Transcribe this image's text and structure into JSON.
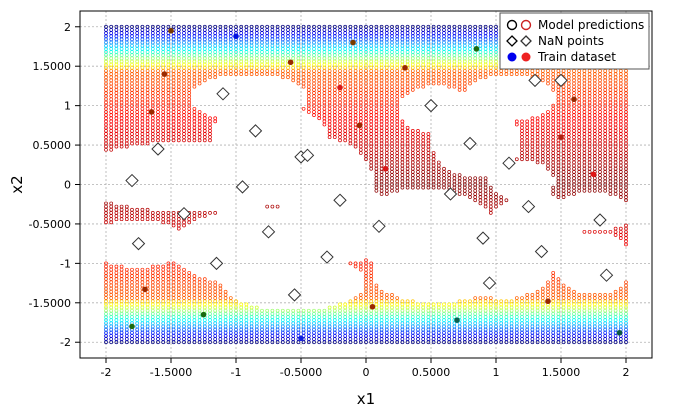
{
  "chart_data": {
    "type": "scatter",
    "xlabel": "x1",
    "ylabel": "x2",
    "xlim": [
      -2.2,
      2.2
    ],
    "ylim": [
      -2.2,
      2.2
    ],
    "grid": true,
    "legend_position": "top-right",
    "x_ticks": [
      -2,
      -1.5,
      -1,
      -0.5,
      0,
      0.5,
      1,
      1.5,
      2
    ],
    "y_ticks": [
      -2,
      -1.5,
      -1,
      -0.5,
      0,
      0.5,
      1,
      1.5,
      2
    ],
    "x_tick_labels": [
      "-2",
      "-1.5000",
      "-1",
      "-0.5000",
      "0",
      "0.5000",
      "1",
      "1.5000",
      "2"
    ],
    "y_tick_labels": [
      "-2",
      "-1.5000",
      "-1",
      "-0.5000",
      "0",
      "0.5000",
      "1",
      "1.5000",
      "2"
    ],
    "legend": [
      {
        "name": "Model predictions",
        "marker": "circle-open",
        "colors": [
          "#000000",
          "#cc2222"
        ]
      },
      {
        "name": "NaN points",
        "marker": "diamond-open",
        "colors": [
          "#000000",
          "#333333"
        ]
      },
      {
        "name": "Train dataset",
        "marker": "circle-filled",
        "colors": [
          "#0000ee",
          "#ee2222"
        ]
      }
    ],
    "model_prediction_grid": {
      "x_range": [
        -2,
        2
      ],
      "y_range": [
        -2,
        2
      ],
      "x_step": 0.04,
      "y_step": 0.04,
      "colormap": "jet",
      "nan_regions": [
        {
          "cx": -1.3,
          "cy": 0.1,
          "rx": 0.95,
          "ry": 0.45
        },
        {
          "cx": -1.75,
          "cy": -0.75,
          "rx": 0.4,
          "ry": 0.3
        },
        {
          "cx": -0.8,
          "cy": -0.8,
          "rx": 0.7,
          "ry": 0.5
        },
        {
          "cx": -0.55,
          "cy": -1.25,
          "rx": 0.55,
          "ry": 0.35
        },
        {
          "cx": -0.35,
          "cy": 0.05,
          "rx": 0.4,
          "ry": 0.55
        },
        {
          "cx": -0.2,
          "cy": -0.5,
          "rx": 0.45,
          "ry": 0.5
        },
        {
          "cx": 0.45,
          "cy": -0.6,
          "rx": 0.55,
          "ry": 0.55
        },
        {
          "cx": 0.55,
          "cy": -1.15,
          "rx": 0.5,
          "ry": 0.35
        },
        {
          "cx": 1.05,
          "cy": -1.0,
          "rx": 0.4,
          "ry": 0.45
        },
        {
          "cx": 1.3,
          "cy": -0.55,
          "rx": 0.35,
          "ry": 0.45
        },
        {
          "cx": 1.75,
          "cy": -1.0,
          "rx": 0.3,
          "ry": 0.4
        },
        {
          "cx": 1.75,
          "cy": -0.35,
          "rx": 0.3,
          "ry": 0.25
        },
        {
          "cx": -0.9,
          "cy": 1.1,
          "rx": 0.45,
          "ry": 0.3
        },
        {
          "cx": -0.75,
          "cy": 0.65,
          "rx": 0.45,
          "ry": 0.35
        },
        {
          "cx": 0.55,
          "cy": 0.95,
          "rx": 0.3,
          "ry": 0.3
        },
        {
          "cx": 0.85,
          "cy": 0.55,
          "rx": 0.35,
          "ry": 0.45
        },
        {
          "cx": 1.1,
          "cy": 1.1,
          "rx": 0.35,
          "ry": 0.3
        },
        {
          "cx": 1.2,
          "cy": 0.05,
          "rx": 0.25,
          "ry": 0.25
        }
      ]
    },
    "nan_points": {
      "x": [
        -1.1,
        -0.85,
        -0.5,
        -1.6,
        -1.8,
        -0.95,
        -1.4,
        -0.45,
        -0.75,
        -0.2,
        -1.75,
        -1.15,
        -0.3,
        -0.55,
        0.1,
        0.5,
        0.65,
        0.8,
        0.9,
        1.1,
        1.25,
        1.35,
        1.5,
        1.8,
        1.85,
        0.95,
        1.3,
        1.55
      ],
      "y": [
        1.15,
        0.68,
        0.35,
        0.45,
        0.05,
        -0.03,
        -0.37,
        0.37,
        -0.6,
        -0.2,
        -0.75,
        -1.0,
        -0.92,
        -1.4,
        -0.53,
        1.0,
        -0.12,
        0.52,
        -0.68,
        0.27,
        -0.28,
        -0.85,
        1.32,
        -0.45,
        -1.15,
        -1.25,
        1.32,
        1.55
      ]
    },
    "train_dataset": {
      "x": [
        -1.5,
        -1.0,
        -1.55,
        -1.65,
        -0.58,
        -0.1,
        -0.2,
        -0.05,
        0.3,
        0.15,
        0.85,
        1.6,
        1.5,
        1.75,
        -1.8,
        -1.25,
        -1.7,
        0.05,
        0.7,
        1.4,
        1.95,
        -0.5
      ],
      "y": [
        1.95,
        1.88,
        1.4,
        0.92,
        1.55,
        1.8,
        1.23,
        0.75,
        1.48,
        0.2,
        1.72,
        1.08,
        0.6,
        0.13,
        -1.8,
        -1.65,
        -1.33,
        -1.55,
        -1.72,
        -1.48,
        -1.88,
        -1.95
      ],
      "colors": [
        "#7a3a00",
        "#0010e0",
        "#9a2a00",
        "#9a2a00",
        "#9a2a00",
        "#7a3a00",
        "#d81818",
        "#9a2a00",
        "#9a2a00",
        "#d81818",
        "#1a6a10",
        "#9a2a00",
        "#b02010",
        "#e01414",
        "#1a6a10",
        "#1a6a10",
        "#9a2a00",
        "#9a2a00",
        "#0a6050",
        "#9a2a00",
        "#0a5a40",
        "#1020e0"
      ]
    }
  }
}
